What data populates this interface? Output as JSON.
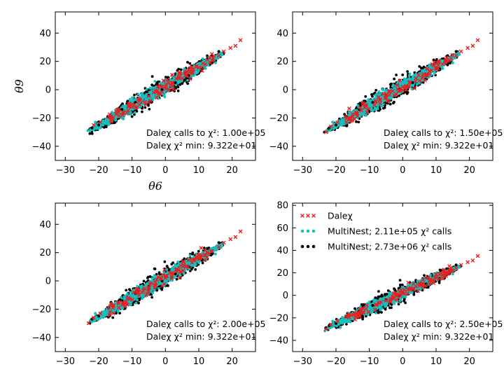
{
  "colors": {
    "dalechi": "#ee1c1c",
    "multinest_a": "#17bfbf",
    "multinest_b": "#000000"
  },
  "axis_labels": {
    "x": "θ6",
    "y": "θ9"
  },
  "chart_data": [
    {
      "type": "scatter",
      "panel": "top-left",
      "xlim": [
        -33,
        27
      ],
      "ylim": [
        -50,
        55
      ],
      "xticks": [
        -30,
        -20,
        -10,
        0,
        10,
        20
      ],
      "yticks": [
        -40,
        -20,
        0,
        20,
        40
      ],
      "xlabel": "θ6",
      "ylabel": "θ9",
      "correlation": {
        "slope": 1.38,
        "intercept": 2.2,
        "x_range": [
          -23,
          17
        ]
      },
      "annotation": [
        "Daleχ calls to χ²: 1.00e+05",
        "Daleχ χ² min: 9.322e+01"
      ],
      "series": [
        {
          "name": "Daleχ",
          "marker": "x",
          "color": "#ee1c1c",
          "x": [
            -21.5,
            -19.5,
            -17,
            -14,
            -11,
            -8,
            -5,
            -3,
            0,
            2,
            4,
            6,
            8,
            10,
            12,
            14,
            16,
            17.5,
            19.5,
            21,
            22.5
          ],
          "y": [
            -25,
            -23,
            -19,
            -16,
            -12,
            -8,
            -4.5,
            -1,
            2,
            5,
            8,
            10,
            13,
            15.5,
            18,
            21,
            24,
            27,
            29.5,
            31,
            35
          ]
        },
        {
          "name": "MultiNest; 2.11e+05 χ² calls",
          "marker": "o",
          "color": "#17bfbf",
          "x": [
            -21,
            -19,
            -16,
            -12,
            -8,
            -4,
            0,
            4,
            8,
            12,
            15,
            17
          ],
          "y": [
            -23,
            -22,
            -16,
            -12,
            -8,
            -3,
            1,
            6,
            11,
            15,
            19,
            25
          ]
        },
        {
          "name": "MultiNest; 2.73e+06 χ² calls",
          "marker": "o",
          "color": "#000000",
          "x": [
            -22,
            -20,
            -17,
            -13,
            -9,
            -5,
            -1,
            3,
            7,
            11,
            14,
            16
          ],
          "y": [
            -27,
            -25,
            -19,
            -14,
            -9,
            -4,
            0,
            5,
            10,
            15,
            19,
            27
          ]
        }
      ]
    },
    {
      "type": "scatter",
      "panel": "top-right",
      "xlim": [
        -33,
        27
      ],
      "ylim": [
        -50,
        55
      ],
      "xticks": [
        -30,
        -20,
        -10,
        0,
        10,
        20
      ],
      "yticks": [
        -40,
        -20,
        0,
        20,
        40
      ],
      "correlation": {
        "slope": 1.38,
        "intercept": 2.2,
        "x_range": [
          -23,
          17
        ]
      },
      "annotation": [
        "Daleχ calls to χ²: 1.50e+05",
        "Daleχ χ² min: 9.322e+01"
      ],
      "series": [
        {
          "name": "Daleχ",
          "marker": "x",
          "color": "#ee1c1c",
          "x": [
            -23,
            -21.5,
            -19.5,
            -17,
            -14,
            -11,
            -8,
            -5,
            -3,
            0,
            2,
            4,
            6,
            8,
            10,
            12,
            14,
            16,
            17.5,
            19.5,
            21,
            22.5
          ],
          "y": [
            -30,
            -26,
            -23,
            -19,
            -16,
            -12,
            -8,
            -4.5,
            -1,
            2,
            5,
            8,
            10,
            13,
            15.5,
            18,
            21,
            24,
            27,
            29.5,
            31,
            35
          ]
        },
        {
          "name": "MultiNest; 2.11e+05 χ² calls",
          "marker": "o",
          "color": "#17bfbf",
          "x": [
            -21,
            -19,
            -16,
            -12,
            -8,
            -4,
            0,
            4,
            8,
            12,
            15,
            17
          ],
          "y": [
            -23,
            -22,
            -16,
            -12,
            -8,
            -3,
            1,
            6,
            11,
            15,
            19,
            25
          ]
        },
        {
          "name": "MultiNest; 2.73e+06 χ² calls",
          "marker": "o",
          "color": "#000000",
          "x": [
            -22,
            -20,
            -17,
            -13,
            -9,
            -5,
            -1,
            3,
            7,
            11,
            14,
            16
          ],
          "y": [
            -27,
            -25,
            -19,
            -14,
            -9,
            -4,
            0,
            5,
            10,
            15,
            19,
            27
          ]
        }
      ]
    },
    {
      "type": "scatter",
      "panel": "bottom-left",
      "xlim": [
        -33,
        27
      ],
      "ylim": [
        -50,
        55
      ],
      "xticks": [
        -30,
        -20,
        -10,
        0,
        10,
        20
      ],
      "yticks": [
        -40,
        -20,
        0,
        20,
        40
      ],
      "correlation": {
        "slope": 1.38,
        "intercept": 2.2,
        "x_range": [
          -23,
          17
        ]
      },
      "annotation": [
        "Daleχ calls to χ²: 2.00e+05",
        "Daleχ χ² min: 9.322e+01"
      ],
      "series": [
        {
          "name": "Daleχ",
          "marker": "x",
          "color": "#ee1c1c",
          "x": [
            -23,
            -21.5,
            -19.5,
            -17,
            -14,
            -11,
            -8,
            -5,
            -3,
            0,
            2,
            4,
            6,
            8,
            10,
            12,
            14,
            16,
            17.5,
            19.5,
            21,
            22.5
          ],
          "y": [
            -30,
            -26,
            -23,
            -19,
            -16,
            -12,
            -8,
            -4.5,
            -1,
            2,
            5,
            8,
            10,
            13,
            15.5,
            18,
            21,
            24,
            27,
            29.5,
            31,
            35
          ]
        },
        {
          "name": "MultiNest; 2.11e+05 χ² calls",
          "marker": "o",
          "color": "#17bfbf",
          "x": [
            -21,
            -19,
            -16,
            -12,
            -8,
            -4,
            0,
            4,
            8,
            12,
            15,
            17
          ],
          "y": [
            -23,
            -22,
            -16,
            -12,
            -8,
            -3,
            1,
            6,
            11,
            15,
            19,
            25
          ]
        },
        {
          "name": "MultiNest; 2.73e+06 χ² calls",
          "marker": "o",
          "color": "#000000",
          "x": [
            -22,
            -20,
            -17,
            -13,
            -9,
            -5,
            -1,
            3,
            7,
            11,
            14,
            16
          ],
          "y": [
            -27,
            -25,
            -19,
            -14,
            -9,
            -4,
            0,
            5,
            10,
            15,
            19,
            27
          ]
        }
      ]
    },
    {
      "type": "scatter",
      "panel": "bottom-right",
      "xlim": [
        -33,
        27
      ],
      "ylim": [
        -50,
        82
      ],
      "xticks": [
        -30,
        -20,
        -10,
        0,
        10,
        20
      ],
      "yticks": [
        -40,
        -20,
        0,
        20,
        40,
        60,
        80
      ],
      "correlation": {
        "slope": 1.38,
        "intercept": 2.2,
        "x_range": [
          -23,
          17
        ]
      },
      "annotation": [
        "Daleχ calls to χ²: 2.50e+05",
        "Daleχ χ² min: 9.322e+01"
      ],
      "legend": {
        "location": "top-left",
        "entries": [
          "Daleχ",
          "MultiNest; 2.11e+05 χ² calls",
          "MultiNest; 2.73e+06 χ² calls"
        ]
      },
      "series": [
        {
          "name": "Daleχ",
          "marker": "x",
          "color": "#ee1c1c",
          "x": [
            -23,
            -21.5,
            -19.5,
            -17,
            -14,
            -11,
            -8,
            -5,
            -3,
            0,
            2,
            4,
            6,
            8,
            10,
            12,
            14,
            16,
            17.5,
            19.5,
            21,
            22.5
          ],
          "y": [
            -30,
            -26,
            -23,
            -19,
            -16,
            -12,
            -8,
            -4.5,
            -1,
            2,
            5,
            8,
            10,
            13,
            15.5,
            18,
            21,
            24,
            27,
            29.5,
            31,
            35
          ]
        },
        {
          "name": "MultiNest; 2.11e+05 χ² calls",
          "marker": "o",
          "color": "#17bfbf",
          "x": [
            -21,
            -19,
            -16,
            -12,
            -8,
            -4,
            0,
            4,
            8,
            12,
            15,
            17
          ],
          "y": [
            -23,
            -22,
            -16,
            -12,
            -8,
            -3,
            1,
            6,
            11,
            15,
            19,
            25
          ]
        },
        {
          "name": "MultiNest; 2.73e+06 χ² calls",
          "marker": "o",
          "color": "#000000",
          "x": [
            -22,
            -20,
            -17,
            -13,
            -9,
            -5,
            -1,
            3,
            7,
            11,
            14,
            16
          ],
          "y": [
            -27,
            -25,
            -19,
            -14,
            -9,
            -4,
            0,
            5,
            10,
            15,
            19,
            27
          ]
        }
      ]
    }
  ]
}
